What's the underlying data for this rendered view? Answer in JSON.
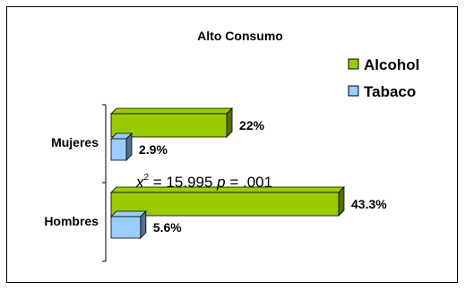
{
  "chart_data": {
    "type": "bar",
    "orientation": "horizontal",
    "title": "Alto Consumo",
    "categories": [
      "Mujeres",
      "Hombres"
    ],
    "series": [
      {
        "name": "Alcohol",
        "values": [
          22,
          43.3
        ],
        "labels": [
          "22%",
          "43.3%"
        ],
        "color": "#99cc00"
      },
      {
        "name": "Tabaco",
        "values": [
          2.9,
          5.6
        ],
        "labels": [
          "2.9%",
          "5.6%"
        ],
        "color": "#99ccff"
      }
    ],
    "xlim": [
      0,
      43.3
    ],
    "grid": false,
    "legend_position": "top-right",
    "annotation": {
      "chi_symbol": "x",
      "chi_exp": "2",
      "chi_value": " = 15.995 ",
      "p_symbol": "p",
      "p_value": " = .001"
    }
  }
}
